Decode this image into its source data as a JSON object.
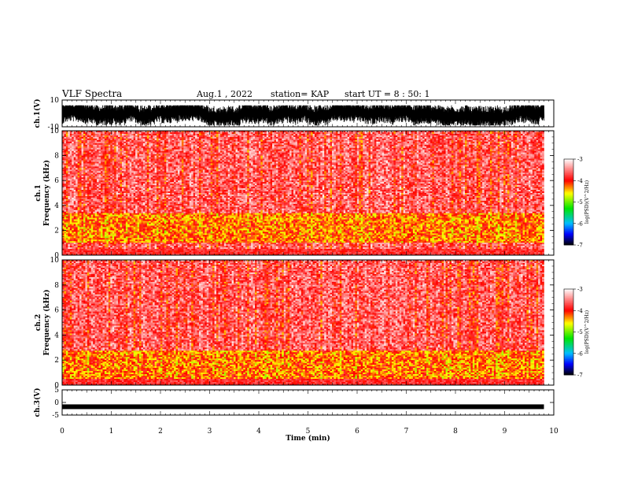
{
  "header": {
    "title": "VLF Spectra",
    "date": "Aug.1 , 2022",
    "station": "station= KAP",
    "start": "start UT = 8 : 50: 1"
  },
  "chart_data": [
    {
      "id": "ch1-waveform",
      "type": "line",
      "ylabel": "ch.1(V)",
      "ylim": [
        -10,
        10
      ],
      "yticks": [
        "10",
        "-10"
      ],
      "xlim": [
        0,
        10
      ],
      "x_extent_min": 9.8,
      "trace_range_v": [
        -9,
        6
      ]
    },
    {
      "id": "ch1-spectrogram",
      "type": "heatmap",
      "ylabel_top": "ch.1",
      "ylabel": "Frequency (kHz)",
      "ylim": [
        0,
        10
      ],
      "yticks": [
        "0",
        "2",
        "4",
        "6",
        "8",
        "10"
      ],
      "xlim": [
        0,
        10
      ],
      "x_extent_min": 9.8,
      "intense_band_khz": [
        1.0,
        3.4
      ],
      "colorbar": {
        "label": "log(PSD)(V^2/Hz)",
        "range": [
          -7,
          -3
        ],
        "ticks": [
          "-3",
          "-4",
          "-5",
          "-6",
          "-7"
        ],
        "colors": [
          "#000000",
          "#0000ff",
          "#00c0ff",
          "#00ff00",
          "#ffff00",
          "#ff0000",
          "#ffffff"
        ]
      }
    },
    {
      "id": "ch2-spectrogram",
      "type": "heatmap",
      "ylabel_top": "ch.2",
      "ylabel": "Frequency (kHz)",
      "ylim": [
        0,
        10
      ],
      "yticks": [
        "0",
        "2",
        "4",
        "6",
        "8",
        "10"
      ],
      "xlim": [
        0,
        10
      ],
      "x_extent_min": 9.8,
      "intense_band_khz": [
        0.5,
        2.8
      ],
      "colorbar": {
        "label": "log(PSD)(V^2/Hz)",
        "range": [
          -7,
          -3
        ],
        "ticks": [
          "-3",
          "-4",
          "-5",
          "-6",
          "-7"
        ],
        "colors": [
          "#000000",
          "#0000ff",
          "#00c0ff",
          "#00ff00",
          "#ffff00",
          "#ff0000",
          "#ffffff"
        ]
      }
    },
    {
      "id": "ch3-waveform",
      "type": "line",
      "ylabel": "ch.3(V)",
      "ylim": [
        -5,
        5
      ],
      "yticks": [
        "5",
        "0",
        "-5"
      ],
      "xlim": [
        0,
        10
      ],
      "x_extent_min": 9.8,
      "trace_level_v": -1.7,
      "xlabel": "Time (min)",
      "xticks": [
        "0",
        "1",
        "2",
        "3",
        "4",
        "5",
        "6",
        "7",
        "8",
        "9",
        "10"
      ]
    }
  ]
}
